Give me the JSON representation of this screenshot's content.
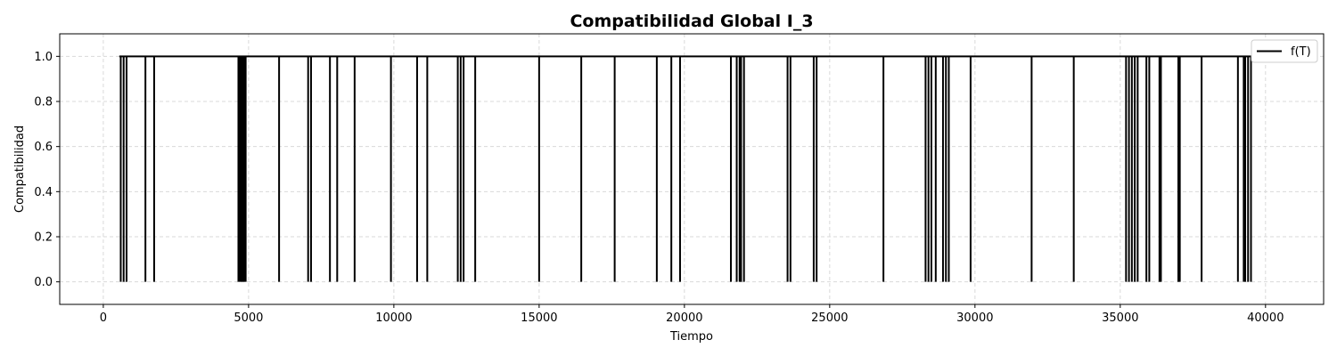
{
  "chart_data": {
    "type": "line",
    "title": "Compatibilidad Global I_3",
    "xlabel": "Tiempo",
    "ylabel": "Compatibilidad",
    "xlim": [
      -1500,
      42000
    ],
    "ylim": [
      -0.1,
      1.1
    ],
    "xticks": [
      0,
      5000,
      10000,
      15000,
      20000,
      25000,
      30000,
      35000,
      40000
    ],
    "xtick_labels": [
      "0",
      "5000",
      "10000",
      "15000",
      "20000",
      "25000",
      "30000",
      "35000",
      "40000"
    ],
    "yticks": [
      0.0,
      0.2,
      0.4,
      0.6,
      0.8,
      1.0
    ],
    "ytick_labels": [
      "0.0",
      "0.2",
      "0.4",
      "0.6",
      "0.8",
      "1.0"
    ],
    "grid": true,
    "legend_position": "top-right",
    "series": [
      {
        "name": "f(T)",
        "color": "#000000",
        "x_start": 550,
        "x_end": 39550,
        "high_value": 1.0,
        "low_value": 0.0,
        "drop_times": [
          600,
          700,
          800,
          1450,
          1750,
          4650,
          4700,
          4750,
          4800,
          4850,
          4900,
          6050,
          7050,
          7150,
          7800,
          8050,
          8650,
          9900,
          10800,
          11150,
          12200,
          12300,
          12400,
          12800,
          15000,
          16450,
          17600,
          19050,
          19550,
          19850,
          21600,
          21800,
          21900,
          21950,
          22050,
          23550,
          23650,
          24450,
          24550,
          26850,
          28300,
          28400,
          28500,
          28650,
          28900,
          29000,
          29100,
          29850,
          31950,
          33400,
          35200,
          35300,
          35400,
          35500,
          35600,
          35900,
          36000,
          36350,
          36400,
          37000,
          37050,
          37800,
          39050,
          39250,
          39300,
          39400,
          39500
        ]
      }
    ]
  }
}
